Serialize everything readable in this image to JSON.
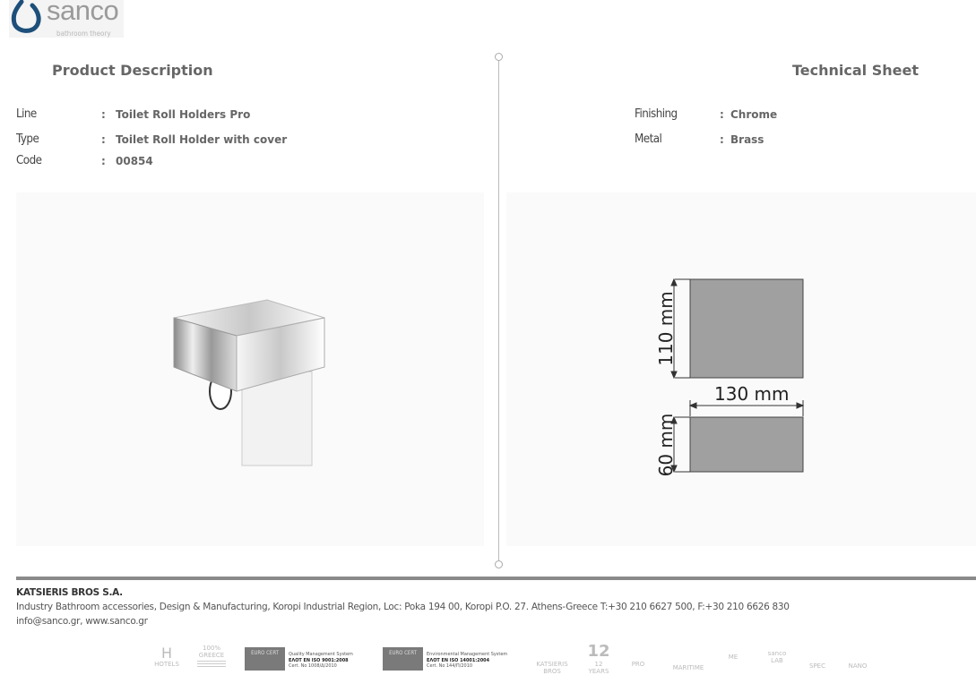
{
  "brand": {
    "name": "sanco",
    "tagline": "bathroom theory",
    "accent": "#1d4f7a"
  },
  "left": {
    "heading": "Product Description",
    "rows": [
      {
        "label": "Line",
        "value": "Toilet Roll Holders Pro"
      },
      {
        "label": "Type",
        "value": "Toilet Roll Holder with cover"
      },
      {
        "label": "Code",
        "value": "00854"
      }
    ]
  },
  "right": {
    "heading": "Technical Sheet",
    "rows": [
      {
        "label": "Finishing",
        "value": "Chrome"
      },
      {
        "label": "Metal",
        "value": "Brass"
      }
    ],
    "drawing": {
      "height": "110 mm",
      "width": "130 mm",
      "depth": "60 mm"
    }
  },
  "separator": ":",
  "footer": {
    "company": "KATSIERIS BROS S.A.",
    "address": "Industry Bathroom accessories, Design & Manufacturing, Koropi Industrial Region, Loc: Poka 194 00, Koropi P.O. 27. Athens-Greece   T:+30 210 6627 500, F:+30 210 6626 830",
    "contact": "info@sanco.gr, www.sanco.gr",
    "badges": {
      "hotels": "HOTELS",
      "greece": "100% GREECE",
      "cert1": {
        "mark": "EURO CERT",
        "title": "Quality Management System",
        "std": "ΕΛΟΤ EN ISO 9001:2008",
        "no": "Cert. No 1008/Δ/2010"
      },
      "cert2": {
        "mark": "EURO CERT",
        "title": "Environmental Management System",
        "std": "ΕΛΟΤ EN ISO 14001:2004",
        "no": "Cert. No 144/Π/2010"
      },
      "katsieris": "KATSIERIS BROS",
      "years": "12 YEARS",
      "pro": "PRO",
      "maritime": "MARITIME",
      "me": "ME",
      "lab": "sanco LAB",
      "spec": "SPEC",
      "nano": "NANO"
    }
  }
}
